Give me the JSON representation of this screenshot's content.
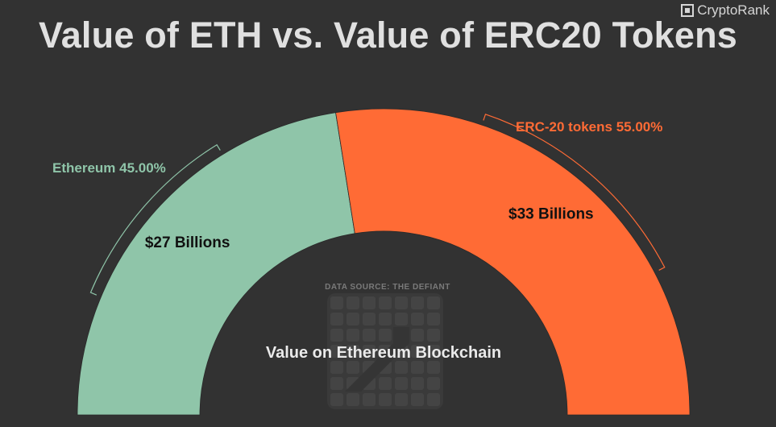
{
  "brand": {
    "name": "CryptoRank",
    "icon": "cryptorank-logo-icon"
  },
  "chart_data": {
    "type": "pie",
    "subtype": "half-donut",
    "title": "Value of ETH vs. Value of ERC20 Tokens",
    "center_label": "Value on Ethereum Blockchain",
    "source_note": "DATA SOURCE: THE DEFIANT",
    "slices": [
      {
        "name": "Ethereum",
        "percent": 45.0,
        "percent_label": "Ethereum 45.00%",
        "value_label": "$27 Billions",
        "color": "#8fc5a9"
      },
      {
        "name": "ERC-20 tokens",
        "percent": 55.0,
        "percent_label": "ERC-20 tokens 55.00%",
        "value_label": "$33 Billions",
        "color": "#ff6b35"
      }
    ]
  },
  "colors": {
    "background": "#323232",
    "title": "#e0e0e0",
    "ethereum": "#8fc5a9",
    "erc20": "#ff6b35"
  }
}
